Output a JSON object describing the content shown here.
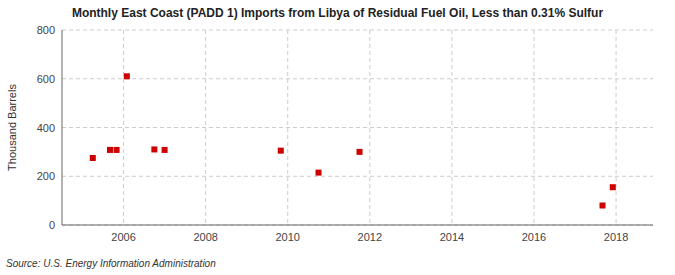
{
  "chart_data": {
    "type": "scatter",
    "title": "Monthly East Coast (PADD 1) Imports from Libya of Residual Fuel Oil, Less than 0.31% Sulfur",
    "ylabel": "Thousand Barrels",
    "source": "Source: U.S. Energy Information Administration",
    "x": [
      2005.25,
      2005.67,
      2005.83,
      2006.08,
      2006.75,
      2007.0,
      2009.83,
      2010.75,
      2011.75,
      2017.67,
      2017.92
    ],
    "values": [
      275,
      308,
      308,
      610,
      310,
      308,
      305,
      215,
      300,
      80,
      155
    ],
    "color": "#cc0000",
    "marker": "square",
    "xlim": [
      2004.5,
      2018.9
    ],
    "ylim": [
      0,
      800
    ],
    "xticks": [
      2006,
      2008,
      2010,
      2012,
      2014,
      2016,
      2018
    ],
    "yticks": [
      0,
      200,
      400,
      600,
      800
    ],
    "grid": true
  }
}
